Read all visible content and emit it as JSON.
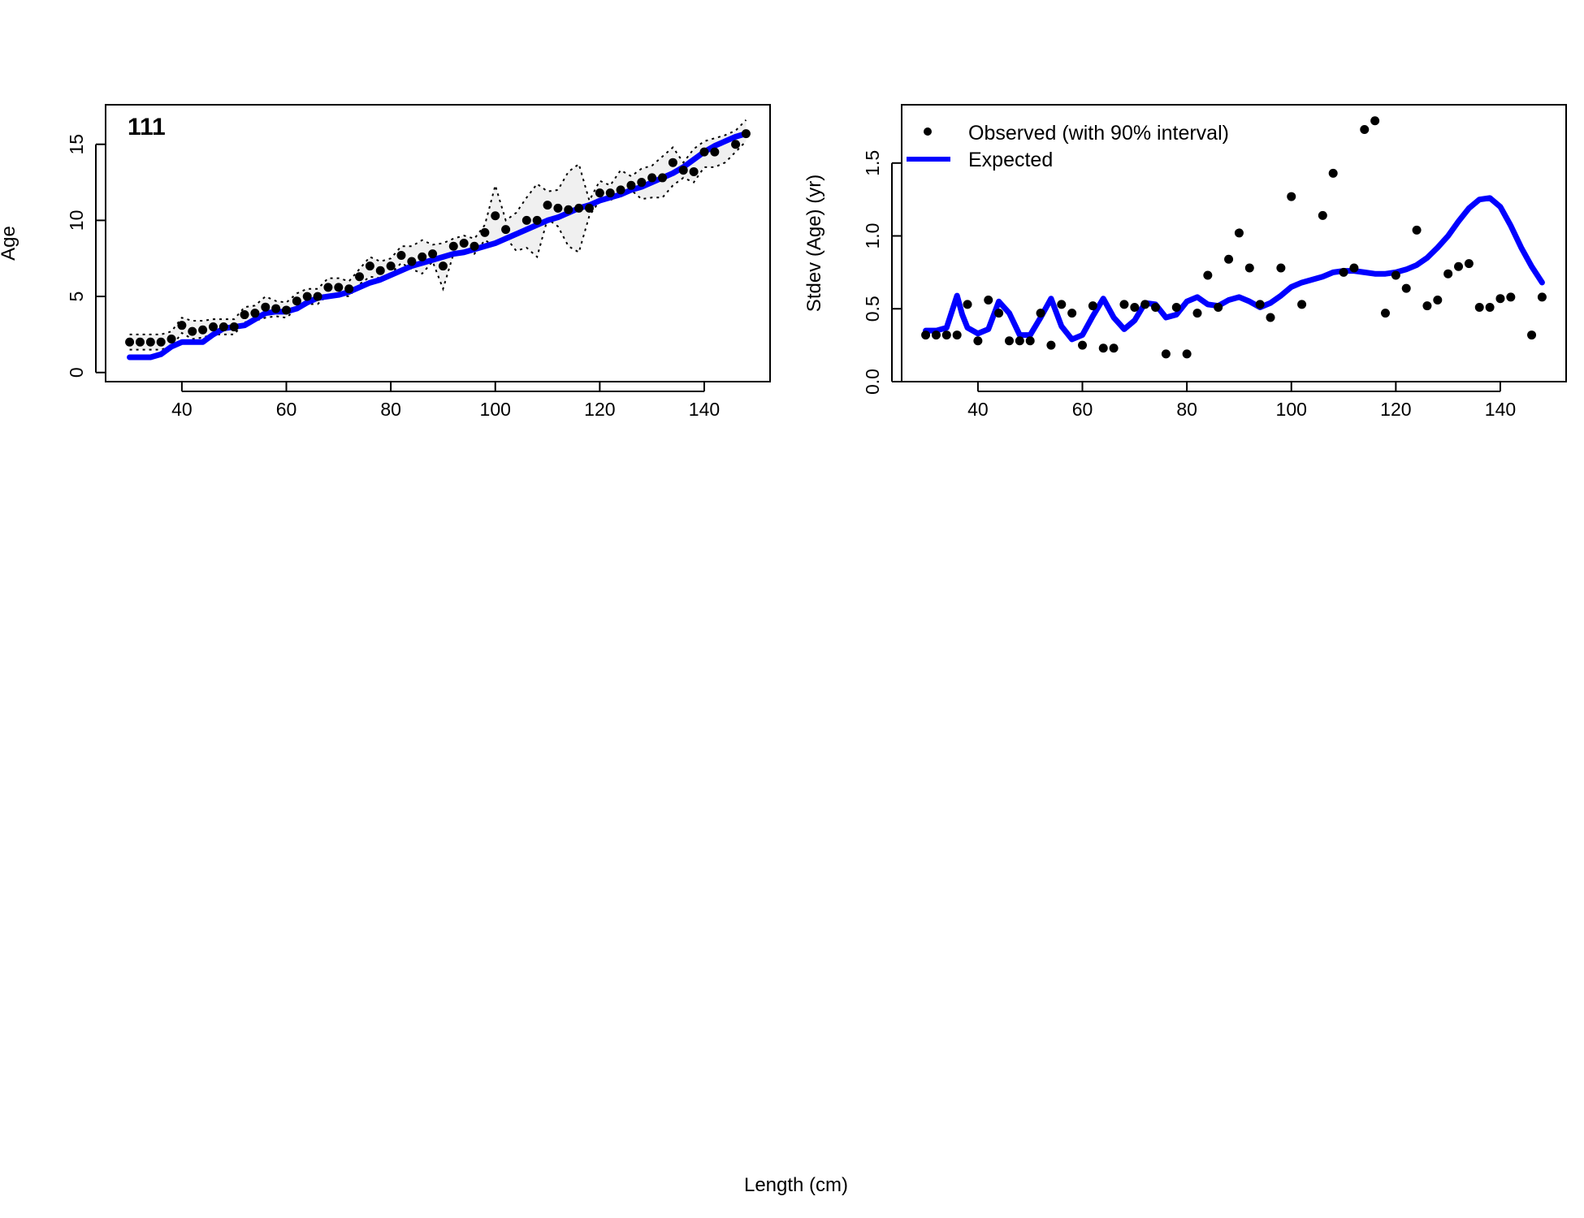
{
  "shared_xlabel": "Length (cm)",
  "chart_data": [
    {
      "type": "line",
      "panel_label": "111",
      "xlabel": "",
      "ylabel": "Age",
      "xlim": [
        25.4,
        152.6
      ],
      "ylim": [
        -0.6,
        17.6
      ],
      "xticks": [
        40,
        60,
        80,
        100,
        120,
        140
      ],
      "yticks": [
        0,
        5,
        10,
        15
      ],
      "grid": false,
      "colors": {
        "expected": "#0000ff",
        "observed": "#000000",
        "band_fill": "#f0f0f0",
        "band_line": "#000000"
      },
      "series": [
        {
          "kind": "points",
          "x": [
            30,
            32,
            34,
            36,
            38,
            40,
            42,
            44,
            46,
            48,
            50,
            52,
            54,
            56,
            58,
            60,
            62,
            64,
            66,
            68,
            70,
            72,
            74,
            76,
            78,
            80,
            82,
            84,
            86,
            88,
            90,
            92,
            94,
            96,
            98,
            100,
            102,
            106,
            108,
            110,
            112,
            114,
            116,
            118,
            120,
            122,
            124,
            126,
            128,
            130,
            132,
            134,
            136,
            138,
            140,
            142,
            146,
            148
          ],
          "values": [
            2.0,
            2.0,
            2.0,
            2.0,
            2.2,
            3.1,
            2.7,
            2.8,
            3.0,
            3.0,
            3.0,
            3.8,
            3.9,
            4.3,
            4.2,
            4.1,
            4.7,
            5.0,
            5.0,
            5.6,
            5.6,
            5.5,
            6.3,
            7.0,
            6.7,
            7.0,
            7.7,
            7.3,
            7.6,
            7.8,
            7.0,
            8.3,
            8.5,
            8.3,
            9.2,
            10.3,
            9.4,
            10.0,
            10.0,
            11.0,
            10.8,
            10.7,
            10.8,
            10.8,
            11.8,
            11.8,
            12.0,
            12.3,
            12.5,
            12.8,
            12.8,
            13.8,
            13.3,
            13.2,
            14.5,
            14.5,
            15.0,
            15.7
          ]
        },
        {
          "kind": "line",
          "x": [
            30,
            32,
            34,
            36,
            38,
            40,
            42,
            44,
            46,
            48,
            50,
            52,
            54,
            56,
            58,
            60,
            62,
            64,
            66,
            68,
            70,
            72,
            74,
            76,
            78,
            80,
            82,
            84,
            86,
            88,
            90,
            92,
            94,
            96,
            98,
            100,
            102,
            104,
            106,
            108,
            110,
            112,
            114,
            116,
            118,
            120,
            122,
            124,
            126,
            128,
            130,
            132,
            134,
            136,
            138,
            140,
            142,
            144,
            146,
            148
          ],
          "values": [
            1.0,
            1.0,
            1.0,
            1.2,
            1.7,
            2.0,
            2.0,
            2.0,
            2.5,
            2.9,
            3.0,
            3.1,
            3.5,
            3.9,
            4.0,
            4.0,
            4.2,
            4.6,
            4.9,
            5.0,
            5.1,
            5.3,
            5.6,
            5.9,
            6.1,
            6.4,
            6.7,
            7.0,
            7.2,
            7.4,
            7.6,
            7.8,
            7.9,
            8.1,
            8.3,
            8.5,
            8.8,
            9.1,
            9.4,
            9.7,
            10.0,
            10.2,
            10.5,
            10.8,
            11.0,
            11.3,
            11.5,
            11.7,
            12.0,
            12.2,
            12.5,
            12.8,
            13.1,
            13.5,
            14.0,
            14.5,
            14.9,
            15.2,
            15.5,
            15.7
          ]
        },
        {
          "kind": "interval",
          "x": [
            30,
            32,
            34,
            36,
            38,
            40,
            42,
            44,
            46,
            48,
            50,
            52,
            54,
            56,
            58,
            60,
            62,
            64,
            66,
            68,
            70,
            72,
            74,
            76,
            78,
            80,
            82,
            84,
            86,
            88,
            90,
            92,
            94,
            96,
            98,
            100,
            102,
            104,
            106,
            108,
            110,
            112,
            114,
            116,
            118,
            120,
            122,
            124,
            126,
            128,
            130,
            132,
            134,
            136,
            138,
            140,
            142,
            144,
            146,
            148
          ],
          "lower": [
            1.5,
            1.5,
            1.5,
            1.5,
            1.7,
            2.6,
            2.2,
            2.3,
            2.5,
            2.5,
            2.5,
            3.3,
            3.4,
            3.6,
            3.7,
            3.6,
            4.2,
            4.5,
            4.5,
            5.1,
            5.1,
            5.0,
            5.8,
            6.3,
            6.2,
            6.5,
            7.2,
            6.8,
            6.5,
            7.3,
            5.5,
            7.8,
            8.0,
            7.8,
            8.7,
            8.3,
            8.9,
            8.0,
            8.2,
            7.6,
            10.1,
            9.6,
            8.3,
            7.9,
            10.3,
            11.3,
            11.3,
            11.8,
            12.0,
            11.4,
            11.5,
            11.5,
            12.3,
            12.8,
            12.5,
            13.5,
            13.5,
            13.8,
            14.5,
            15.2
          ],
          "upper": [
            2.5,
            2.5,
            2.5,
            2.5,
            2.7,
            3.6,
            3.4,
            3.4,
            3.5,
            3.5,
            3.5,
            4.3,
            4.4,
            5.0,
            4.7,
            4.6,
            5.2,
            5.5,
            5.5,
            6.2,
            6.2,
            6.0,
            6.8,
            7.6,
            7.3,
            7.5,
            8.3,
            8.3,
            8.7,
            8.4,
            8.5,
            8.8,
            9.0,
            8.8,
            9.7,
            12.3,
            10.0,
            10.5,
            11.5,
            12.4,
            11.9,
            12.0,
            13.2,
            13.7,
            11.3,
            12.6,
            12.3,
            13.3,
            12.9,
            13.4,
            13.6,
            14.2,
            14.8,
            13.8,
            14.7,
            15.2,
            15.4,
            15.6,
            15.9,
            16.6
          ]
        }
      ]
    },
    {
      "type": "line",
      "xlabel": "",
      "ylabel": "Stdev (Age) (yr)",
      "xlim": [
        25.4,
        152.6
      ],
      "ylim": [
        0.0,
        1.9
      ],
      "xticks": [
        40,
        60,
        80,
        100,
        120,
        140
      ],
      "yticks": [
        0.0,
        0.5,
        1.0,
        1.5
      ],
      "ytick_labels": [
        "0.0",
        "0.5",
        "1.0",
        "1.5"
      ],
      "grid": false,
      "legend_placement": "top-left",
      "colors": {
        "expected": "#0000ff",
        "observed": "#000000"
      },
      "series": [
        {
          "kind": "points",
          "name": "Observed (with 90% interval)",
          "x": [
            30,
            32,
            34,
            36,
            38,
            40,
            42,
            44,
            46,
            48,
            50,
            52,
            54,
            56,
            58,
            60,
            62,
            64,
            66,
            68,
            70,
            72,
            74,
            76,
            78,
            80,
            82,
            84,
            86,
            88,
            90,
            92,
            94,
            96,
            98,
            100,
            102,
            106,
            108,
            110,
            112,
            114,
            116,
            118,
            120,
            122,
            124,
            126,
            128,
            130,
            132,
            134,
            136,
            138,
            140,
            142,
            146,
            148
          ],
          "values": [
            0.32,
            0.32,
            0.32,
            0.32,
            0.53,
            0.28,
            0.56,
            0.47,
            0.28,
            0.28,
            0.28,
            0.47,
            0.25,
            0.53,
            0.47,
            0.25,
            0.52,
            0.23,
            0.23,
            0.53,
            0.51,
            0.53,
            0.51,
            0.19,
            0.51,
            0.19,
            0.47,
            0.73,
            0.51,
            0.84,
            1.02,
            0.78,
            0.53,
            0.44,
            0.78,
            1.27,
            0.53,
            1.14,
            1.43,
            0.75,
            0.78,
            1.73,
            1.79,
            0.47,
            0.73,
            0.64,
            1.04,
            0.52,
            0.56,
            0.74,
            0.79,
            0.81,
            0.51,
            0.51,
            0.57,
            0.58,
            0.32,
            0.58
          ]
        },
        {
          "kind": "line",
          "name": "Expected",
          "x": [
            30,
            32,
            34,
            36,
            37,
            38,
            40,
            42,
            44,
            46,
            48,
            50,
            52,
            54,
            56,
            58,
            60,
            62,
            64,
            66,
            68,
            70,
            72,
            74,
            76,
            78,
            80,
            82,
            84,
            86,
            88,
            90,
            92,
            94,
            96,
            98,
            100,
            102,
            104,
            106,
            108,
            110,
            112,
            114,
            116,
            118,
            120,
            122,
            124,
            126,
            128,
            130,
            132,
            134,
            136,
            138,
            140,
            142,
            144,
            146,
            148
          ],
          "values": [
            0.35,
            0.35,
            0.37,
            0.59,
            0.46,
            0.37,
            0.33,
            0.36,
            0.55,
            0.47,
            0.32,
            0.32,
            0.44,
            0.57,
            0.38,
            0.29,
            0.32,
            0.45,
            0.57,
            0.44,
            0.36,
            0.42,
            0.54,
            0.53,
            0.44,
            0.46,
            0.55,
            0.58,
            0.53,
            0.52,
            0.56,
            0.58,
            0.55,
            0.51,
            0.54,
            0.59,
            0.65,
            0.68,
            0.7,
            0.72,
            0.75,
            0.76,
            0.76,
            0.75,
            0.74,
            0.74,
            0.75,
            0.77,
            0.8,
            0.85,
            0.92,
            1.0,
            1.1,
            1.19,
            1.25,
            1.26,
            1.2,
            1.07,
            0.92,
            0.79,
            0.68
          ]
        }
      ]
    }
  ]
}
